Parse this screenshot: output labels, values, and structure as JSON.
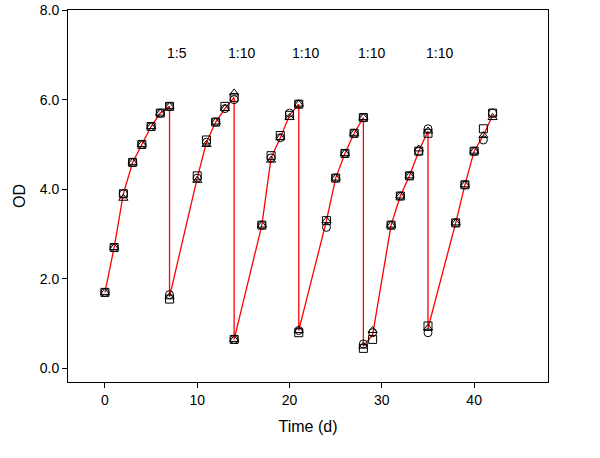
{
  "chart_data": {
    "type": "scatter",
    "x_label": "Time (d)",
    "y_label": "OD",
    "x": [
      0,
      1,
      2,
      3,
      4,
      5,
      6,
      7,
      7,
      10,
      11,
      12,
      13,
      14,
      14,
      17,
      18,
      19,
      20,
      21,
      21,
      24,
      25,
      26,
      27,
      28,
      28,
      29,
      31,
      32,
      33,
      34,
      35,
      35,
      38,
      39,
      40,
      41,
      42
    ],
    "series": [
      {
        "type": "line",
        "color": "#ff0000",
        "line_style": "solid",
        "values": [
          1.7,
          2.7,
          3.9,
          4.6,
          5.0,
          5.4,
          5.7,
          5.85,
          1.6,
          4.25,
          5.05,
          5.5,
          5.8,
          6.05,
          0.65,
          3.2,
          4.7,
          5.15,
          5.65,
          5.9,
          0.85,
          3.3,
          4.25,
          4.8,
          5.25,
          5.6,
          0.5,
          0.75,
          3.2,
          3.85,
          4.3,
          4.85,
          5.3,
          0.9,
          3.25,
          4.1,
          4.85,
          5.2,
          5.65
        ]
      },
      {
        "type": "scatter",
        "color": "#000000",
        "marker": "square-open",
        "values": [
          1.7,
          2.7,
          3.9,
          4.6,
          5.0,
          5.4,
          5.7,
          5.85,
          1.55,
          4.3,
          5.1,
          5.5,
          5.85,
          6.05,
          0.65,
          3.2,
          4.75,
          5.2,
          5.65,
          5.9,
          0.8,
          3.3,
          4.25,
          4.8,
          5.25,
          5.6,
          0.45,
          0.65,
          3.2,
          3.85,
          4.3,
          4.85,
          5.25,
          0.95,
          3.25,
          4.1,
          4.85,
          5.35,
          5.7
        ]
      },
      {
        "type": "scatter",
        "color": "#000000",
        "marker": "circle-open",
        "values": [
          1.7,
          2.7,
          3.9,
          4.6,
          5.0,
          5.4,
          5.7,
          5.85,
          1.65,
          4.25,
          5.05,
          5.5,
          5.8,
          6.0,
          0.65,
          3.2,
          4.7,
          5.15,
          5.7,
          5.9,
          0.85,
          3.15,
          4.25,
          4.8,
          5.25,
          5.6,
          0.55,
          0.8,
          3.2,
          3.85,
          4.3,
          4.85,
          5.35,
          0.8,
          3.25,
          4.1,
          4.85,
          5.1,
          5.7
        ]
      },
      {
        "type": "scatter",
        "color": "#000000",
        "marker": "triangle-up-open",
        "values": [
          1.7,
          2.7,
          3.8,
          4.6,
          5.0,
          5.4,
          5.7,
          5.85,
          1.6,
          4.2,
          5.0,
          5.5,
          5.8,
          6.15,
          0.65,
          3.2,
          4.65,
          5.15,
          5.6,
          5.9,
          0.85,
          3.3,
          4.25,
          4.8,
          5.25,
          5.6,
          0.5,
          0.85,
          3.2,
          3.85,
          4.3,
          4.9,
          5.3,
          0.9,
          3.25,
          4.1,
          4.85,
          5.2,
          5.6
        ]
      }
    ],
    "annotations": [
      {
        "text": "1:5",
        "x": 7.8,
        "y": 7.05
      },
      {
        "text": "1:10",
        "x": 14.8,
        "y": 7.05
      },
      {
        "text": "1:10",
        "x": 21.7,
        "y": 7.05
      },
      {
        "text": "1:10",
        "x": 28.9,
        "y": 7.05
      },
      {
        "text": "1:10",
        "x": 36.2,
        "y": 7.05
      }
    ],
    "xlim": [
      -4,
      48
    ],
    "xticks": [
      0,
      10,
      20,
      30,
      40
    ],
    "ylim": [
      -0.3,
      8
    ],
    "yticks": [
      {
        "value": 0,
        "label": "0.0"
      },
      {
        "value": 2,
        "label": "2.0"
      },
      {
        "value": 4,
        "label": "4.0"
      },
      {
        "value": 6,
        "label": "6.0"
      },
      {
        "value": 8,
        "label": "8.0"
      }
    ],
    "grid": false
  }
}
